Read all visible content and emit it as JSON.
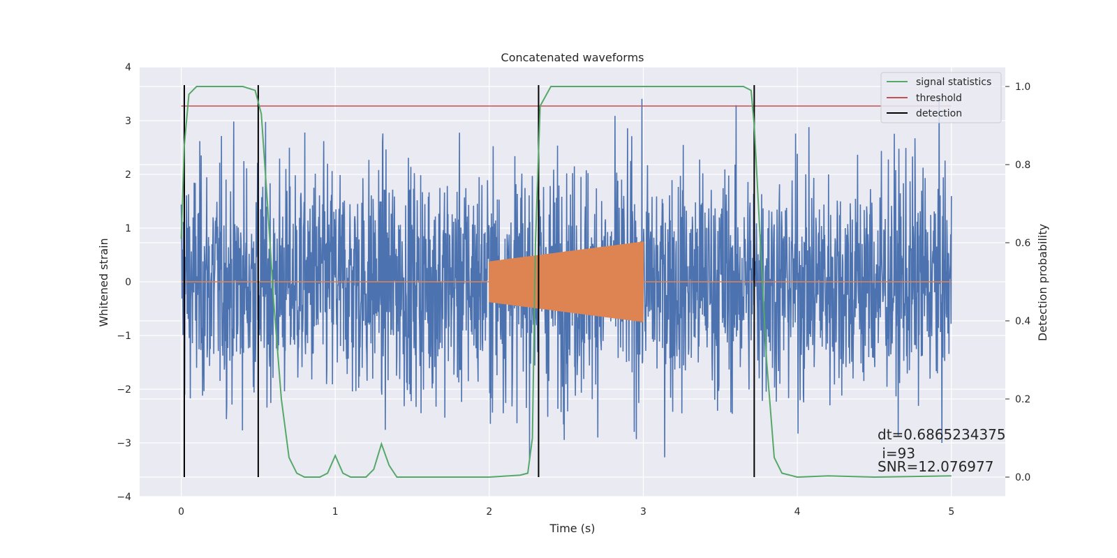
{
  "chart_data": {
    "type": "line",
    "title": "Concatenated waveforms",
    "xlabel": "Time (s)",
    "ylabel": "Whitened strain",
    "y2label": "Detection probability",
    "xlim": [
      -0.27,
      5.35
    ],
    "ylim": [
      -4,
      4
    ],
    "y2lim": [
      -0.05,
      1.05
    ],
    "xticks": [
      0,
      1,
      2,
      3,
      4,
      5
    ],
    "yticks": [
      -4,
      -3,
      -2,
      -1,
      0,
      1,
      2,
      3,
      4
    ],
    "y2ticks": [
      0.0,
      0.2,
      0.4,
      0.6,
      0.8,
      1.0
    ],
    "xtick_labels": [
      "0",
      "1",
      "2",
      "3",
      "4",
      "5"
    ],
    "ytick_labels": [
      "−4",
      "−3",
      "−2",
      "−1",
      "0",
      "1",
      "2",
      "3",
      "4"
    ],
    "y2tick_labels": [
      "0.0",
      "0.2",
      "0.4",
      "0.6",
      "0.8",
      "1.0"
    ],
    "grid": true,
    "legend_position": "top-right",
    "colors": {
      "strain": "#4c72b0",
      "injection": "#dd8452",
      "signal_statistics": "#55a868",
      "threshold": "#c44e52",
      "detection": "#000000",
      "background": "#eaeaf2",
      "grid": "#ffffff"
    },
    "legend": [
      {
        "label": "signal statistics",
        "color": "#55a868"
      },
      {
        "label": "threshold",
        "color": "#c44e52"
      },
      {
        "label": "detection",
        "color": "#000000"
      }
    ],
    "series": [
      {
        "name": "signal statistics",
        "axis": "right",
        "x": [
          0.0,
          0.02,
          0.05,
          0.1,
          0.2,
          0.3,
          0.4,
          0.48,
          0.52,
          0.56,
          0.6,
          0.65,
          0.7,
          0.75,
          0.8,
          0.9,
          0.95,
          1.0,
          1.05,
          1.1,
          1.2,
          1.25,
          1.3,
          1.35,
          1.4,
          1.5,
          2.0,
          2.2,
          2.25,
          2.28,
          2.3,
          2.33,
          2.4,
          2.6,
          3.0,
          3.5,
          3.65,
          3.7,
          3.72,
          3.76,
          3.8,
          3.85,
          3.9,
          4.0,
          4.2,
          4.5,
          5.0
        ],
        "values": [
          0.61,
          0.85,
          0.98,
          1.0,
          1.0,
          1.0,
          1.0,
          0.99,
          0.93,
          0.7,
          0.45,
          0.2,
          0.05,
          0.01,
          0.0,
          0.0,
          0.01,
          0.055,
          0.01,
          0.0,
          0.0,
          0.02,
          0.085,
          0.03,
          0.0,
          0.0,
          0.0,
          0.005,
          0.01,
          0.1,
          0.6,
          0.95,
          1.0,
          1.0,
          1.0,
          1.0,
          1.0,
          0.99,
          0.9,
          0.6,
          0.3,
          0.05,
          0.01,
          0.0,
          0.003,
          0.0,
          0.003
        ]
      },
      {
        "name": "threshold",
        "axis": "right",
        "x": [
          0.0,
          5.0
        ],
        "values": [
          0.95,
          0.95
        ]
      }
    ],
    "strain": {
      "x_range": [
        0.0,
        5.0
      ],
      "typical_amplitude": 1.2,
      "min": -3.3,
      "max": 3.6
    },
    "injection": {
      "x_range": [
        2.0,
        3.0
      ],
      "amplitude_start": 0.38,
      "amplitude_end": 0.75
    },
    "detections": [
      0.02,
      0.5,
      2.32,
      3.72
    ],
    "annotations": [
      "dt=0.6865234375",
      " i=93",
      "SNR=12.076977"
    ]
  }
}
